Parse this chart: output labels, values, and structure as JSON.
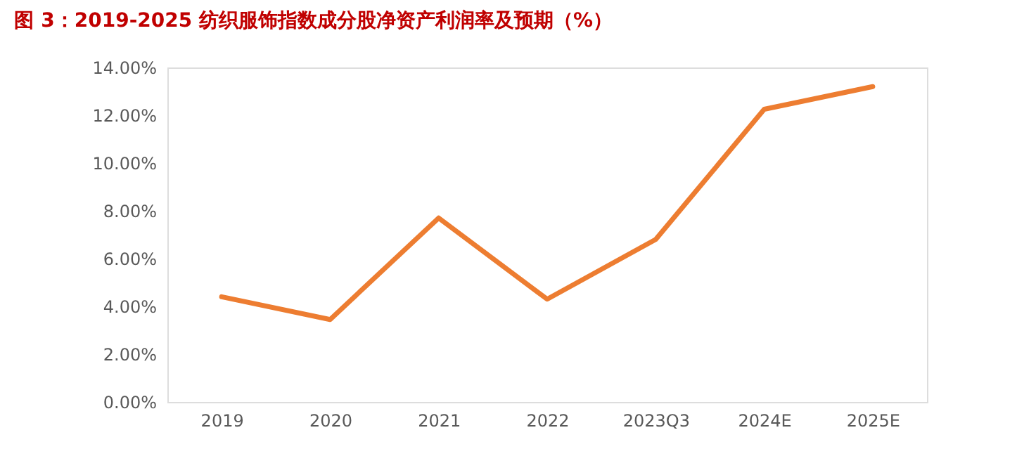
{
  "chart_data": {
    "type": "line",
    "title": "图 3：2019-2025 纺织服饰指数成分股净资产利润率及预期（%）",
    "categories": [
      "2019",
      "2020",
      "2021",
      "2022",
      "2023Q3",
      "2024E",
      "2025E"
    ],
    "series": [
      {
        "color": "#ed7d31",
        "values": [
          4.4,
          3.45,
          7.7,
          4.3,
          6.8,
          12.25,
          13.2
        ]
      }
    ],
    "ylim": [
      0,
      14
    ],
    "yticks": [
      {
        "value": 0,
        "label": "0.00%"
      },
      {
        "value": 2,
        "label": "2.00%"
      },
      {
        "value": 4,
        "label": "4.00%"
      },
      {
        "value": 6,
        "label": "6.00%"
      },
      {
        "value": 8,
        "label": "8.00%"
      },
      {
        "value": 10,
        "label": "10.00%"
      },
      {
        "value": 12,
        "label": "12.00%"
      },
      {
        "value": 14,
        "label": "14.00%"
      }
    ],
    "grid": false,
    "marker": "none",
    "line_style": "solid"
  }
}
